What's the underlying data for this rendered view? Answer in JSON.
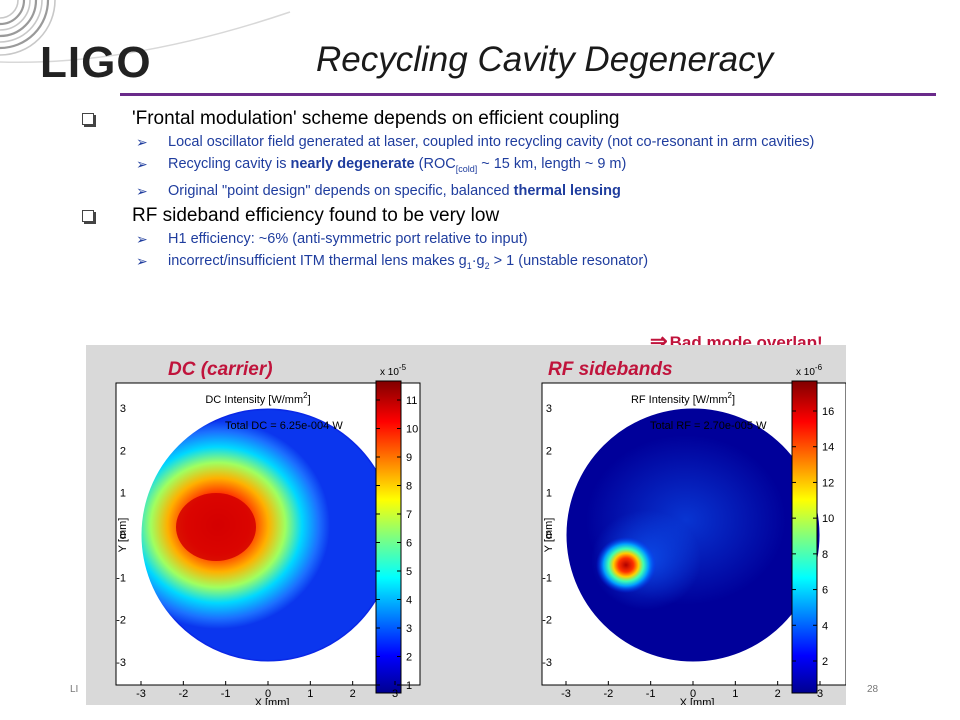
{
  "header": {
    "logo": "LIGO",
    "title": "Recycling Cavity Degeneracy"
  },
  "bullets": {
    "b1": {
      "text": "'Frontal modulation' scheme depends on efficient coupling"
    },
    "b1_sub1": {
      "text": "Local oscillator field generated at laser, coupled into recycling cavity (not co-resonant in arm cavities)"
    },
    "b1_sub2": {
      "pre": "Recycling cavity is ",
      "bold": "nearly degenerate",
      "mid": " (ROC",
      "sub": "[cold]",
      "post": " ~ 15 km, length ~ 9 m)"
    },
    "b1_sub3": {
      "pre": "Original \"point design\" depends on specific, balanced ",
      "bold": "thermal lensing"
    },
    "b2": {
      "text": "RF sideband efficiency found to be very low"
    },
    "b2_sub1": {
      "text": "H1 efficiency: ~6% (anti-symmetric port relative to input)"
    },
    "b2_sub2": {
      "pre": "incorrect/insufficient ITM thermal lens makes g",
      "s1": "1",
      "dot": "·g",
      "s2": "2",
      "post": " > 1  (unstable resonator)"
    }
  },
  "callout": {
    "arrow": "⇒",
    "text": "Bad mode overlap!"
  },
  "figure": {
    "colors": {
      "label": "#c0143c",
      "background": "#d9d9d9"
    },
    "plots": [
      {
        "label": "DC (carrier)",
        "title": "DC Intensity [W/mm",
        "title_exp": "2",
        "title_end": "]",
        "total_label": "Total DC =",
        "total_value": "6.25e-004 W",
        "xlabel": "X [mm]",
        "ylabel": "Y [mm]",
        "xticks": [
          "-3",
          "-2",
          "-1",
          "0",
          "1",
          "2",
          "3"
        ],
        "yticks": [
          "3",
          "2",
          "1",
          "0",
          "-1",
          "-2",
          "-3"
        ],
        "colorbar_mult": "x 10",
        "colorbar_exp": "-5",
        "colorbar_ticks": [
          "11",
          "10",
          "9",
          "8",
          "7",
          "6",
          "5",
          "4",
          "3",
          "2",
          "1"
        ]
      },
      {
        "label": "RF sidebands",
        "title": "RF Intensity  [W/mm",
        "title_exp": "2",
        "title_end": "]",
        "total_label": "Total RF =",
        "total_value": "2.70e-005 W",
        "xlabel": "X [mm]",
        "ylabel": "Y [mm]",
        "xticks": [
          "-3",
          "-2",
          "-1",
          "0",
          "1",
          "2",
          "3"
        ],
        "yticks": [
          "3",
          "2",
          "1",
          "0",
          "-1",
          "-2",
          "-3"
        ],
        "colorbar_mult": "x 10",
        "colorbar_exp": "-6",
        "colorbar_ticks": [
          "16",
          "14",
          "12",
          "10",
          "8",
          "6",
          "4",
          "2"
        ]
      }
    ]
  },
  "footer": {
    "left": "LI",
    "page": "28"
  }
}
